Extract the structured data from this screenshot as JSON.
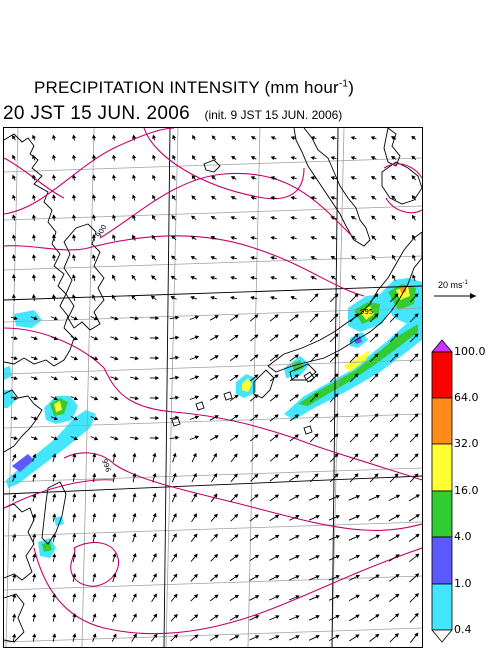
{
  "header": {
    "title": "PRECIPITATION INTENSITY (mm hour",
    "title_exponent": "-1",
    "title_close": ")",
    "valid_time": "20 JST 15 JUN. 2006",
    "init_time": "(init. 9 JST 15 JUN. 2006)"
  },
  "reference_vector": {
    "label": "20 ms",
    "label_exponent": "-1"
  },
  "legend": {
    "ticks": [
      "100.0",
      "64.0",
      "32.0",
      "16.0",
      "4.0",
      "1.0",
      "0.4"
    ],
    "colors": [
      "#ff0000",
      "#ff8c1a",
      "#ffff33",
      "#33cc33",
      "#5a5aff",
      "#44e5ff"
    ],
    "arrow_top_color": "#cc33ff",
    "arrow_bottom_color": "#ffffff"
  },
  "map": {
    "coast_color": "#000000",
    "grid_color": "#a0a0a0",
    "contour_color": "#c8006e",
    "contour_labels": [
      "900",
      "996",
      "995"
    ]
  }
}
